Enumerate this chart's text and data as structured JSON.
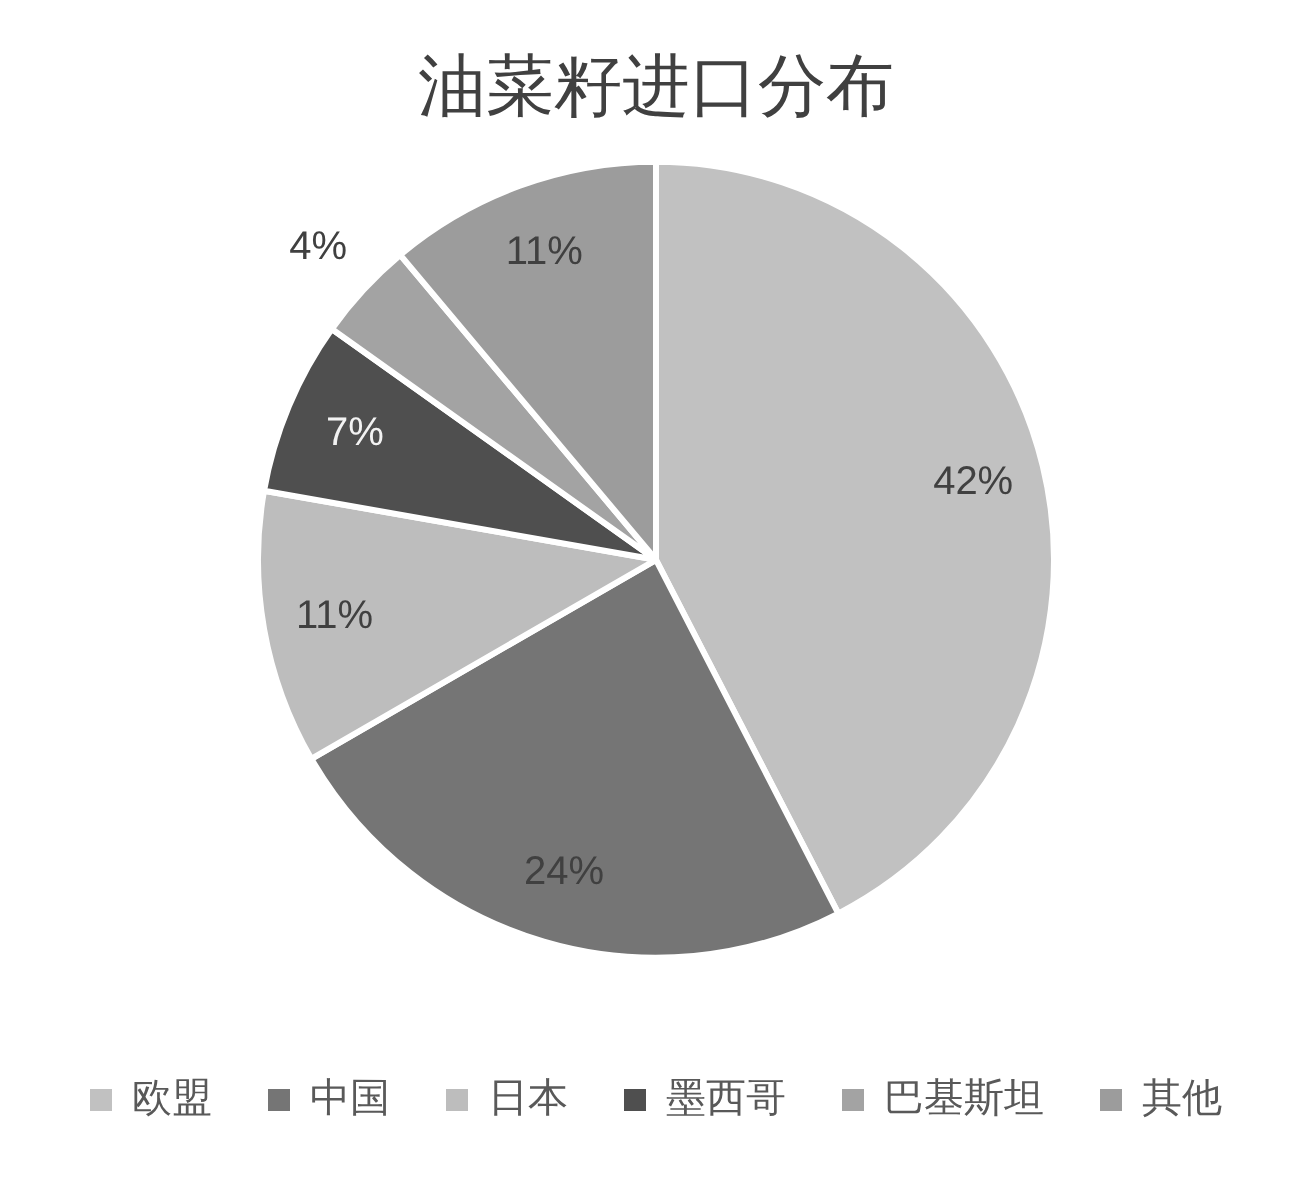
{
  "chart_data": {
    "type": "pie",
    "title": "油菜籽进口分布",
    "categories": [
      "欧盟",
      "中国",
      "日本",
      "墨西哥",
      "巴基斯坦",
      "其他"
    ],
    "values": [
      42,
      24,
      11,
      7,
      4,
      11
    ],
    "colors": [
      "#c1c1c1",
      "#757575",
      "#bdbdbd",
      "#4f4f4f",
      "#a3a3a3",
      "#9c9c9c"
    ],
    "value_labels": [
      "42%",
      "24%",
      "11%",
      "7%",
      "4%",
      "11%"
    ],
    "legend": "bottom"
  }
}
